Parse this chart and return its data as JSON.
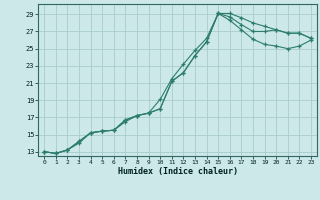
{
  "xlabel": "Humidex (Indice chaleur)",
  "ylabel": "",
  "bg_color": "#cce8e8",
  "grid_color": "#aacccc",
  "line_color": "#2d7d6e",
  "xlim": [
    -0.5,
    23.5
  ],
  "ylim": [
    12.5,
    30.2
  ],
  "xticks": [
    0,
    1,
    2,
    3,
    4,
    5,
    6,
    7,
    8,
    9,
    10,
    11,
    12,
    13,
    14,
    15,
    16,
    17,
    18,
    19,
    20,
    21,
    22,
    23
  ],
  "yticks": [
    13,
    15,
    17,
    19,
    21,
    23,
    25,
    27,
    29
  ],
  "line1_x": [
    0,
    1,
    2,
    3,
    4,
    5,
    6,
    7,
    8,
    9,
    10,
    11,
    12,
    13,
    14,
    15,
    16,
    17,
    18,
    19,
    20,
    21,
    22,
    23
  ],
  "line1_y": [
    13,
    12.8,
    13.2,
    14.2,
    15.2,
    15.4,
    15.5,
    16.7,
    17.2,
    17.5,
    18.0,
    21.2,
    22.2,
    24.2,
    25.8,
    29.1,
    29.1,
    28.6,
    28.0,
    27.6,
    27.2,
    26.8,
    26.8,
    26.2
  ],
  "line2_x": [
    0,
    1,
    2,
    3,
    4,
    5,
    6,
    7,
    8,
    9,
    10,
    11,
    12,
    13,
    14,
    15,
    16,
    17,
    18,
    19,
    20,
    21,
    22,
    23
  ],
  "line2_y": [
    13,
    12.8,
    13.2,
    14.2,
    15.2,
    15.4,
    15.5,
    16.7,
    17.2,
    17.5,
    18.0,
    21.2,
    22.2,
    24.2,
    25.8,
    29.1,
    28.7,
    27.8,
    27.0,
    27.0,
    27.2,
    26.8,
    26.8,
    26.2
  ],
  "line3_x": [
    0,
    1,
    2,
    3,
    4,
    5,
    6,
    7,
    8,
    9,
    10,
    11,
    12,
    13,
    14,
    15,
    16,
    17,
    18,
    19,
    20,
    21,
    22,
    23
  ],
  "line3_y": [
    13,
    12.8,
    13.2,
    14.0,
    15.2,
    15.4,
    15.5,
    16.5,
    17.2,
    17.5,
    19.1,
    21.5,
    23.2,
    24.8,
    26.2,
    29.1,
    28.3,
    27.2,
    26.1,
    25.5,
    25.3,
    25.0,
    25.3,
    26.0
  ]
}
